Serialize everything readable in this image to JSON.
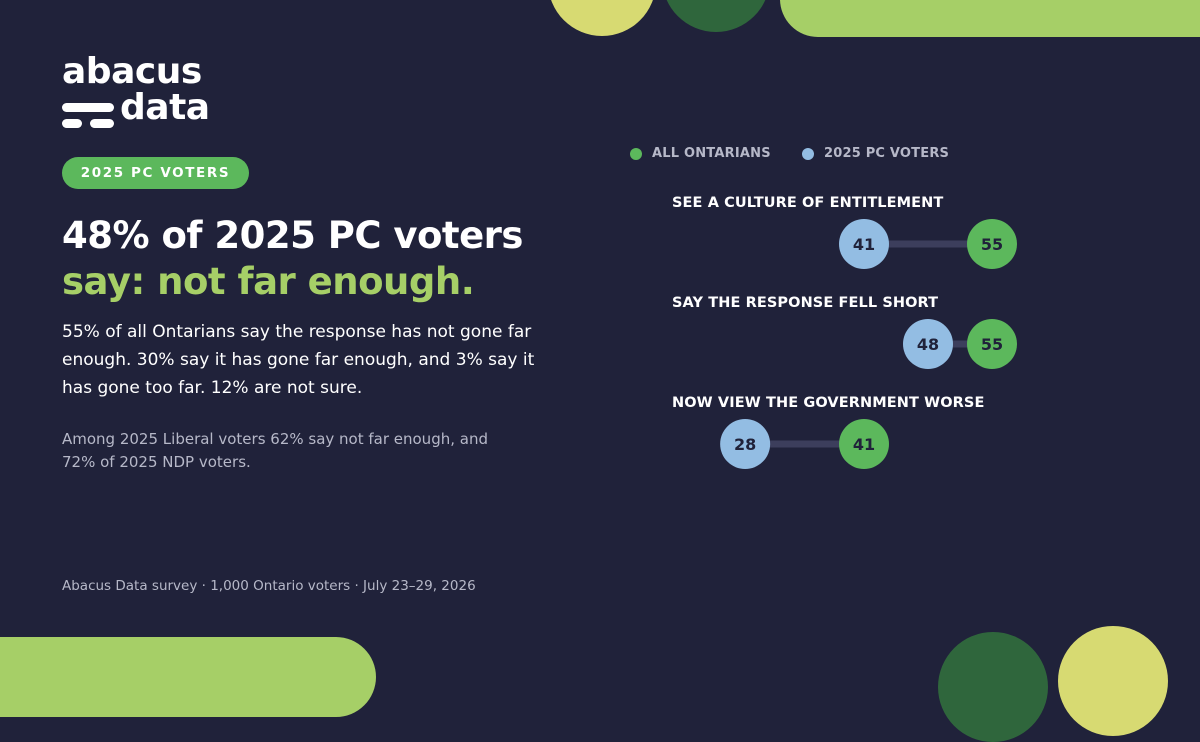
{
  "brand": {
    "logo_line1": "abacus",
    "logo_line2": "data"
  },
  "pill_label": "2025 PC VOTERS",
  "headline": {
    "line1": "48% of 2025 PC voters",
    "line2": "say: not far enough."
  },
  "body_text": "55% of all Ontarians say the response has not gone far enough. 30% say it has gone far enough, and 3% say it has gone too far. 12% are not sure.",
  "sub_text": "Among 2025 Liberal voters 62% say not far enough, and 72% of 2025 NDP voters.",
  "source": "Abacus Data survey · 1,000 Ontario voters · July 23–29, 2026",
  "colors": {
    "background": "#20223a",
    "all_ontarians": "#5cb85c",
    "pc_voters": "#93bde3",
    "accent_green": "#a6cf67",
    "connector": "#3c3e5c"
  },
  "chart_data": {
    "type": "dot-plot",
    "series": [
      {
        "name": "ALL ONTARIANS",
        "values": [
          55,
          55,
          41
        ]
      },
      {
        "name": "2025 PC VOTERS",
        "values": [
          41,
          48,
          28
        ]
      }
    ],
    "categories": [
      "SEE A CULTURE OF ENTITLEMENT",
      "SAY THE RESPONSE FELL SHORT",
      "NOW VIEW THE GOVERNMENT WORSE"
    ],
    "legend": "top",
    "grid": false
  }
}
